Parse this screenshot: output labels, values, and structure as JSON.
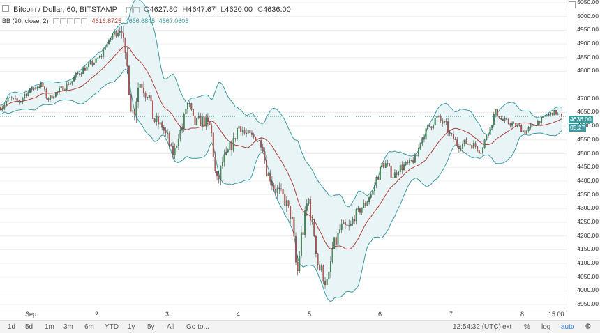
{
  "legend": {
    "symbol_title": "Bitcoin / Dollar, 60, BITSTAMP",
    "open_label": "O",
    "open": "4627.80",
    "high_label": "H",
    "high": "4647.67",
    "low_label": "L",
    "low": "4620.00",
    "close_label": "C",
    "close": "4636.00",
    "bb_title": "BB (20, close, 2)",
    "bb_basis": "4616.8725",
    "bb_upper": "4666.6845",
    "bb_lower": "4567.0605"
  },
  "price_tag": "4636.00",
  "basis_tag": "05.27",
  "time_display": "12:54:32 (UTC)",
  "time_tail": "15:00",
  "toolbar": {
    "ranges": [
      "1d",
      "5d",
      "1m",
      "3m",
      "6m",
      "YTD",
      "1y",
      "5y",
      "All"
    ],
    "goto": "Go to...",
    "ext": "ext",
    "pct": "%",
    "log": "log",
    "auto": "auto"
  },
  "colors": {
    "up": "#3c9a57",
    "down": "#d05250",
    "band": "#3d9aa1",
    "band_fill": "#e8f4f5",
    "basis": "#b0403a",
    "last_price": "#3a9b9b"
  },
  "chart_data": {
    "type": "candlestick",
    "title": "Bitcoin / Dollar, 60, BITSTAMP",
    "x_ticks": [
      "Sep",
      "2",
      "3",
      "4",
      "5",
      "6",
      "7",
      "8"
    ],
    "y_ticks": [
      3950,
      4000,
      4050,
      4100,
      4150,
      4200,
      4250,
      4300,
      4350,
      4400,
      4450,
      4500,
      4550,
      4600,
      4650,
      4700,
      4800,
      4850,
      4900,
      4950,
      5000,
      5050
    ],
    "y_tick_labels": [
      "3950.00",
      "4000.00",
      "4050.00",
      "4100.00",
      "4150.00",
      "4200.00",
      "4250.00",
      "4300.00",
      "4350.00",
      "4400.00",
      "4450.00",
      "4500.00",
      "4550.00",
      "4600.00",
      "4650.00",
      "4700.00",
      "4800.00",
      "4850.00",
      "4900.00",
      "4950.00",
      "5000.00",
      "5050.00"
    ],
    "ylim": [
      3935,
      5060
    ],
    "last_price": 4636.0,
    "series": [
      {
        "name": "close",
        "anchors": [
          [
            0,
            4670
          ],
          [
            5,
            4700
          ],
          [
            10,
            4690
          ],
          [
            14,
            4720
          ],
          [
            18,
            4740
          ],
          [
            22,
            4750
          ],
          [
            26,
            4700
          ],
          [
            30,
            4720
          ],
          [
            34,
            4740
          ],
          [
            38,
            4760
          ],
          [
            42,
            4790
          ],
          [
            46,
            4810
          ],
          [
            50,
            4830
          ],
          [
            54,
            4850
          ],
          [
            58,
            4900
          ],
          [
            62,
            4940
          ],
          [
            66,
            4960
          ],
          [
            68,
            4840
          ],
          [
            72,
            4650
          ],
          [
            76,
            4760
          ],
          [
            80,
            4720
          ],
          [
            84,
            4620
          ],
          [
            88,
            4600
          ],
          [
            90,
            4570
          ],
          [
            94,
            4500
          ],
          [
            98,
            4580
          ],
          [
            102,
            4680
          ],
          [
            106,
            4610
          ],
          [
            110,
            4620
          ],
          [
            114,
            4600
          ],
          [
            118,
            4400
          ],
          [
            122,
            4480
          ],
          [
            126,
            4530
          ],
          [
            130,
            4600
          ],
          [
            134,
            4570
          ],
          [
            138,
            4560
          ],
          [
            142,
            4540
          ],
          [
            146,
            4420
          ],
          [
            150,
            4370
          ],
          [
            154,
            4340
          ],
          [
            158,
            4280
          ],
          [
            162,
            4070
          ],
          [
            164,
            4200
          ],
          [
            168,
            4330
          ],
          [
            170,
            4230
          ],
          [
            174,
            4080
          ],
          [
            178,
            4030
          ],
          [
            182,
            4170
          ],
          [
            186,
            4230
          ],
          [
            190,
            4230
          ],
          [
            194,
            4280
          ],
          [
            198,
            4310
          ],
          [
            202,
            4350
          ],
          [
            206,
            4420
          ],
          [
            208,
            4460
          ],
          [
            210,
            4460
          ],
          [
            214,
            4420
          ],
          [
            218,
            4450
          ],
          [
            222,
            4460
          ],
          [
            226,
            4480
          ],
          [
            230,
            4560
          ],
          [
            234,
            4600
          ],
          [
            238,
            4630
          ],
          [
            242,
            4610
          ],
          [
            246,
            4560
          ],
          [
            250,
            4530
          ],
          [
            254,
            4540
          ],
          [
            258,
            4530
          ],
          [
            262,
            4510
          ],
          [
            266,
            4580
          ],
          [
            270,
            4650
          ],
          [
            274,
            4620
          ],
          [
            278,
            4610
          ],
          [
            282,
            4600
          ],
          [
            286,
            4580
          ],
          [
            290,
            4600
          ],
          [
            294,
            4620
          ],
          [
            298,
            4640
          ],
          [
            302,
            4650
          ],
          [
            306,
            4636
          ]
        ]
      },
      {
        "name": "volatility",
        "anchors": [
          [
            0,
            14
          ],
          [
            60,
            12
          ],
          [
            70,
            40
          ],
          [
            90,
            22
          ],
          [
            118,
            30
          ],
          [
            140,
            20
          ],
          [
            160,
            40
          ],
          [
            180,
            32
          ],
          [
            200,
            20
          ],
          [
            240,
            18
          ],
          [
            306,
            10
          ]
        ]
      }
    ],
    "bands": {
      "period": 20,
      "mult": 2
    }
  }
}
